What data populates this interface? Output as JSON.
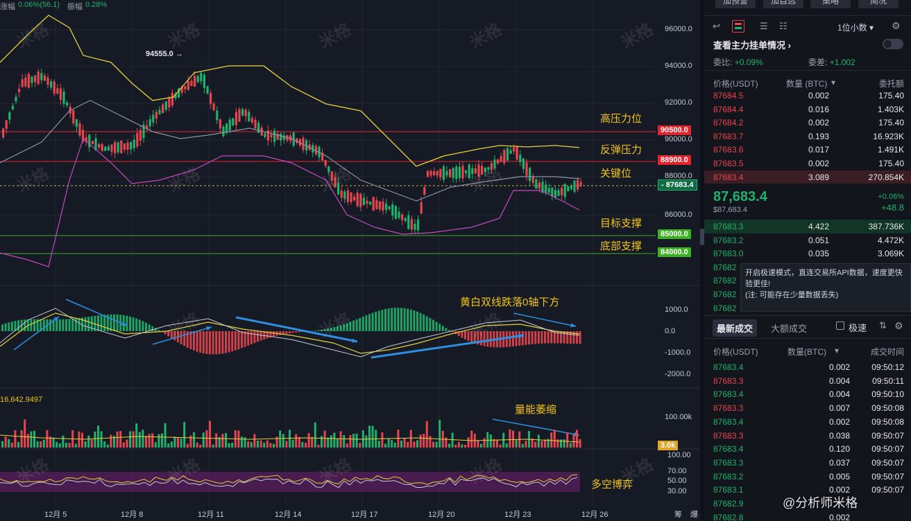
{
  "chart": {
    "change_label": "涨幅",
    "change_value": "0.06%(56.1)",
    "amplitude_label": "振幅",
    "amplitude_value": "0.28%",
    "high_marker": "94555.0",
    "volume_value": "16,642.9497",
    "price_axis": [
      "96000.0",
      "94000.0",
      "92000.0",
      "90000.0",
      "88000.0",
      "86000.0"
    ],
    "macd_axis": [
      "1000.0",
      "0.0",
      "-1000.0",
      "-2000.0"
    ],
    "vol_axis": [
      "100.00k"
    ],
    "vol_current": "3.0k",
    "osc_axis": [
      "100.00",
      "70.00",
      "50.00",
      "30.00"
    ],
    "x_labels": [
      "12月 5",
      "12月 8",
      "12月 11",
      "12月 14",
      "12月 17",
      "12月 20",
      "12月 23",
      "12月 26"
    ],
    "x_extra": [
      "筹",
      "爆"
    ],
    "levels": [
      {
        "value": "90500.0",
        "name": "高压力位",
        "color": "#e1252d"
      },
      {
        "value": "88900.0",
        "name": "反弹压力",
        "color": "#e1252d"
      },
      {
        "value": "87683.4",
        "name": "关键位",
        "color": "#20b26c"
      },
      {
        "value": "85000.0",
        "name": "目标支撑",
        "color": "#3db025"
      },
      {
        "value": "84000.0",
        "name": "底部支撑",
        "color": "#3db025"
      }
    ],
    "macd_note": "黄白双线跌落0轴下方",
    "vol_note": "量能萎缩",
    "osc_note": "多空博弈",
    "watermark": "米格",
    "credit": "@分析师米格"
  },
  "panel": {
    "top_buttons": [
      "加预警",
      "加自选",
      "策略",
      "简况"
    ],
    "precision": "1位小数",
    "main_force": "查看主力挂单情况",
    "ratio_label": "委比:",
    "ratio_value": "+0.09%",
    "diff_label": "委差:",
    "diff_value": "+1.002",
    "ob_headers": [
      "价格(USDT)",
      "数量 (BTC)",
      "委托额"
    ],
    "asks": [
      [
        "87684.5",
        "0.002",
        "175.40"
      ],
      [
        "87684.4",
        "0.016",
        "1.403K"
      ],
      [
        "87684.2",
        "0.002",
        "175.40"
      ],
      [
        "87683.7",
        "0.193",
        "16.923K"
      ],
      [
        "87683.6",
        "0.017",
        "1.491K"
      ],
      [
        "87683.5",
        "0.002",
        "175.40"
      ],
      [
        "87683.4",
        "3.089",
        "270.854K"
      ]
    ],
    "last_price": "87,683.4",
    "last_price_usd": "$87,683.4",
    "last_change_pct": "+0.06%",
    "last_change": "+48.8",
    "bids": [
      [
        "87683.3",
        "4.422",
        "387.736K"
      ],
      [
        "87683.2",
        "0.051",
        "4.472K"
      ],
      [
        "87683.0",
        "0.035",
        "3.069K"
      ],
      [
        "87682",
        "",
        ""
      ],
      [
        "87682",
        "",
        ""
      ],
      [
        "87682",
        "",
        ""
      ],
      [
        "87682",
        "",
        ""
      ]
    ],
    "tooltip_line1": "开启极速模式，直连交易所API数据，速度更快",
    "tooltip_line2": "验更佳!",
    "tooltip_line3": "(注: 可能存在少量数据丢失)",
    "tabs": [
      "最新成交",
      "大额成交"
    ],
    "fast_mode": "极速",
    "trade_headers": [
      "价格(USDT)",
      "数量(BTC)",
      "成交时间"
    ],
    "trades": [
      [
        "87683.4",
        "0.002",
        "09:50:12",
        "g"
      ],
      [
        "87683.3",
        "0.004",
        "09:50:11",
        "r"
      ],
      [
        "87683.4",
        "0.004",
        "09:50:10",
        "g"
      ],
      [
        "87683.3",
        "0.007",
        "09:50:08",
        "r"
      ],
      [
        "87683.4",
        "0.002",
        "09:50:08",
        "g"
      ],
      [
        "87683.3",
        "0.038",
        "09:50:07",
        "r"
      ],
      [
        "87683.4",
        "0.120",
        "09:50:07",
        "g"
      ],
      [
        "87683.3",
        "0.037",
        "09:50:07",
        "g"
      ],
      [
        "87683.2",
        "0.005",
        "09:50:07",
        "g"
      ],
      [
        "87683.1",
        "0.002",
        "09:50:07",
        "g"
      ],
      [
        "87682.9",
        "",
        "",
        " g"
      ],
      [
        "87682.8",
        "0.002",
        "",
        ""
      ]
    ]
  }
}
